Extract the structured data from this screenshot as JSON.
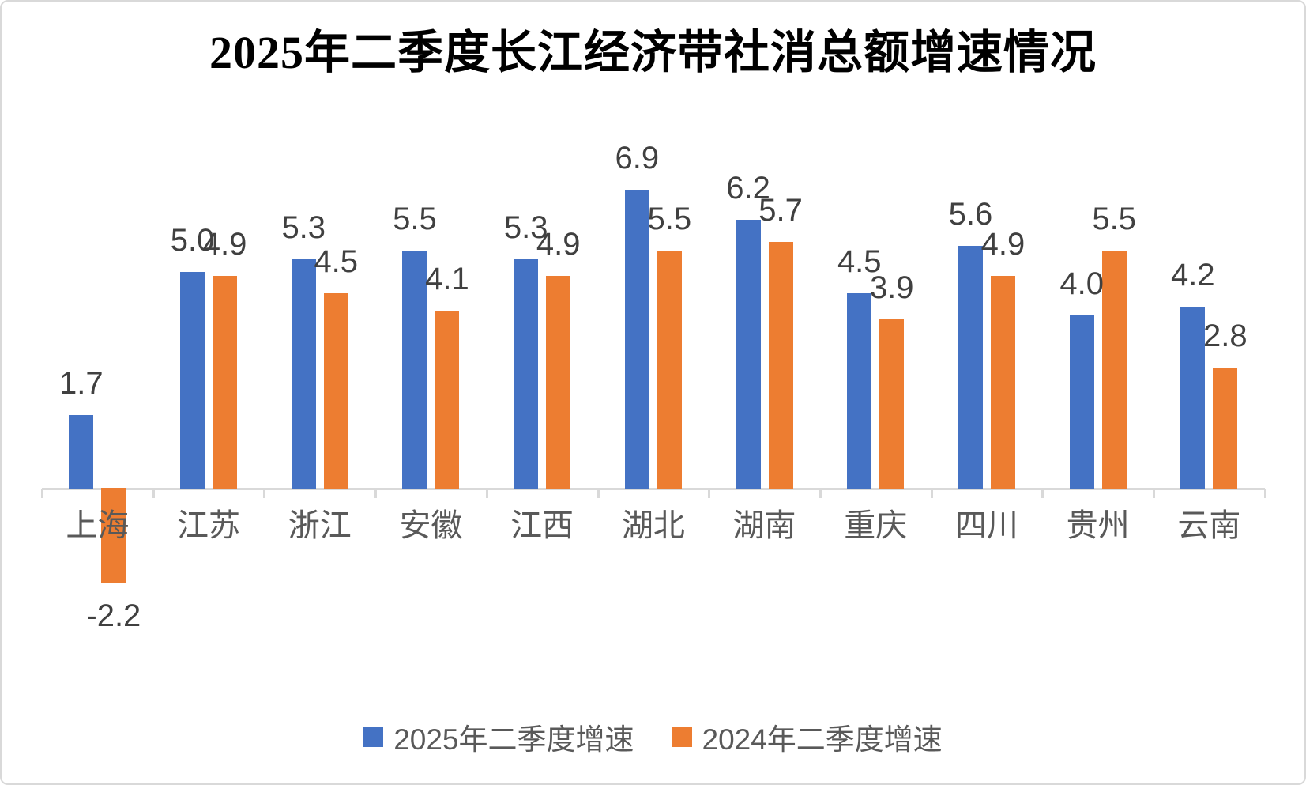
{
  "chart_data": {
    "type": "bar",
    "title": "2025年二季度长江经济带社消总额增速情况",
    "categories": [
      "上海",
      "江苏",
      "浙江",
      "安徽",
      "江西",
      "湖北",
      "湖南",
      "重庆",
      "四川",
      "贵州",
      "云南"
    ],
    "series": [
      {
        "name": "2025年二季度增速",
        "color": "#4472C4",
        "values": [
          1.7,
          5.0,
          5.3,
          5.5,
          5.3,
          6.9,
          6.2,
          4.5,
          5.6,
          4.0,
          4.2
        ]
      },
      {
        "name": "2024年二季度增速",
        "color": "#ED7D31",
        "values": [
          -2.2,
          4.9,
          4.5,
          4.1,
          4.9,
          5.5,
          5.7,
          3.9,
          4.9,
          5.5,
          2.8
        ]
      }
    ],
    "value_labels": {
      "visible": true,
      "decimals": 1,
      "position": "outside-end"
    },
    "xlabel": "",
    "ylabel": "",
    "ylim": [
      -2.2,
      6.9
    ],
    "baseline_value": 0,
    "gridlines": false,
    "y_axis_visible": false,
    "legend_position": "bottom",
    "colors": {
      "series_2025": "#4472C4",
      "series_2024": "#ED7D31",
      "axis_line": "#D9D9D9",
      "data_label": "#404040",
      "category_label": "#595959",
      "legend_label": "#595959",
      "title": "#000000",
      "background": "#FFFFFF",
      "border": "#D9D9D9"
    }
  }
}
